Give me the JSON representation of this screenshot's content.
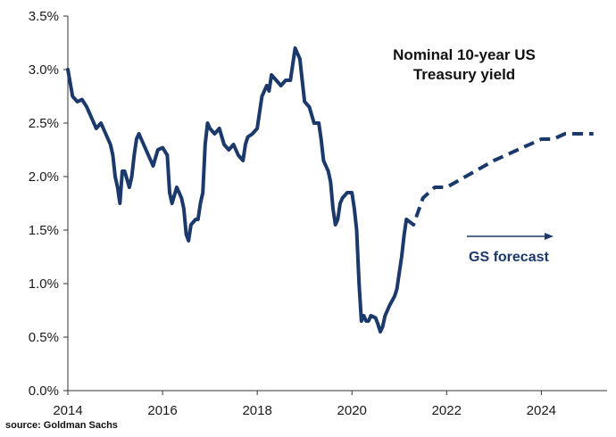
{
  "chart_data": {
    "type": "line",
    "title": "Nominal 10-year US Treasury yield",
    "title_lines": [
      "Nominal 10-year US",
      "Treasury yield"
    ],
    "xlabel": "",
    "ylabel": "",
    "xlim": [
      2014,
      2025.2
    ],
    "ylim": [
      0,
      3.5
    ],
    "x_ticks": [
      2014,
      2016,
      2018,
      2020,
      2022,
      2024
    ],
    "x_tick_labels": [
      "2014",
      "2016",
      "2018",
      "2020",
      "2022",
      "2024"
    ],
    "y_ticks": [
      0,
      0.5,
      1.0,
      1.5,
      2.0,
      2.5,
      3.0,
      3.5
    ],
    "y_tick_labels": [
      "0.0%",
      "0.5%",
      "1.0%",
      "1.5%",
      "2.0%",
      "2.5%",
      "3.0%",
      "3.5%"
    ],
    "grid": false,
    "series": [
      {
        "style": "solid",
        "color": "#1b3a6b",
        "points": [
          [
            2014.0,
            3.0
          ],
          [
            2014.1,
            2.75
          ],
          [
            2014.2,
            2.7
          ],
          [
            2014.3,
            2.72
          ],
          [
            2014.4,
            2.65
          ],
          [
            2014.5,
            2.55
          ],
          [
            2014.6,
            2.45
          ],
          [
            2014.7,
            2.5
          ],
          [
            2014.8,
            2.4
          ],
          [
            2014.9,
            2.3
          ],
          [
            2014.95,
            2.2
          ],
          [
            2015.0,
            2.0
          ],
          [
            2015.05,
            1.9
          ],
          [
            2015.1,
            1.75
          ],
          [
            2015.15,
            2.05
          ],
          [
            2015.2,
            2.05
          ],
          [
            2015.3,
            1.9
          ],
          [
            2015.35,
            2.0
          ],
          [
            2015.4,
            2.2
          ],
          [
            2015.45,
            2.35
          ],
          [
            2015.5,
            2.4
          ],
          [
            2015.6,
            2.3
          ],
          [
            2015.7,
            2.2
          ],
          [
            2015.8,
            2.1
          ],
          [
            2015.9,
            2.25
          ],
          [
            2016.0,
            2.27
          ],
          [
            2016.1,
            2.2
          ],
          [
            2016.15,
            1.85
          ],
          [
            2016.2,
            1.75
          ],
          [
            2016.3,
            1.9
          ],
          [
            2016.4,
            1.8
          ],
          [
            2016.45,
            1.7
          ],
          [
            2016.5,
            1.46
          ],
          [
            2016.55,
            1.4
          ],
          [
            2016.6,
            1.55
          ],
          [
            2016.7,
            1.6
          ],
          [
            2016.75,
            1.6
          ],
          [
            2016.8,
            1.75
          ],
          [
            2016.85,
            1.85
          ],
          [
            2016.9,
            2.3
          ],
          [
            2016.95,
            2.5
          ],
          [
            2017.0,
            2.45
          ],
          [
            2017.1,
            2.4
          ],
          [
            2017.2,
            2.45
          ],
          [
            2017.3,
            2.3
          ],
          [
            2017.4,
            2.25
          ],
          [
            2017.5,
            2.3
          ],
          [
            2017.6,
            2.2
          ],
          [
            2017.7,
            2.15
          ],
          [
            2017.75,
            2.3
          ],
          [
            2017.8,
            2.37
          ],
          [
            2017.9,
            2.4
          ],
          [
            2018.0,
            2.45
          ],
          [
            2018.1,
            2.75
          ],
          [
            2018.2,
            2.85
          ],
          [
            2018.25,
            2.8
          ],
          [
            2018.3,
            2.95
          ],
          [
            2018.4,
            2.9
          ],
          [
            2018.5,
            2.85
          ],
          [
            2018.6,
            2.9
          ],
          [
            2018.7,
            2.9
          ],
          [
            2018.8,
            3.2
          ],
          [
            2018.85,
            3.15
          ],
          [
            2018.9,
            3.1
          ],
          [
            2018.95,
            2.9
          ],
          [
            2019.0,
            2.7
          ],
          [
            2019.1,
            2.65
          ],
          [
            2019.2,
            2.5
          ],
          [
            2019.3,
            2.5
          ],
          [
            2019.35,
            2.35
          ],
          [
            2019.4,
            2.15
          ],
          [
            2019.5,
            2.05
          ],
          [
            2019.55,
            1.95
          ],
          [
            2019.6,
            1.7
          ],
          [
            2019.65,
            1.55
          ],
          [
            2019.7,
            1.6
          ],
          [
            2019.75,
            1.75
          ],
          [
            2019.8,
            1.8
          ],
          [
            2019.9,
            1.85
          ],
          [
            2020.0,
            1.85
          ],
          [
            2020.05,
            1.7
          ],
          [
            2020.1,
            1.5
          ],
          [
            2020.15,
            1.0
          ],
          [
            2020.2,
            0.65
          ],
          [
            2020.25,
            0.7
          ],
          [
            2020.3,
            0.65
          ],
          [
            2020.35,
            0.65
          ],
          [
            2020.4,
            0.7
          ],
          [
            2020.5,
            0.68
          ],
          [
            2020.55,
            0.62
          ],
          [
            2020.6,
            0.55
          ],
          [
            2020.65,
            0.6
          ],
          [
            2020.7,
            0.7
          ],
          [
            2020.8,
            0.8
          ],
          [
            2020.9,
            0.88
          ],
          [
            2020.95,
            0.95
          ],
          [
            2021.0,
            1.1
          ],
          [
            2021.05,
            1.25
          ],
          [
            2021.1,
            1.45
          ],
          [
            2021.15,
            1.6
          ]
        ]
      },
      {
        "style": "dashed",
        "color": "#1b3a6b",
        "points": [
          [
            2021.15,
            1.6
          ],
          [
            2021.3,
            1.55
          ],
          [
            2021.5,
            1.8
          ],
          [
            2021.75,
            1.9
          ],
          [
            2022.0,
            1.9
          ],
          [
            2023.0,
            2.15
          ],
          [
            2024.0,
            2.35
          ],
          [
            2024.25,
            2.35
          ],
          [
            2024.5,
            2.4
          ],
          [
            2025.1,
            2.4
          ]
        ]
      }
    ],
    "annotations": [
      {
        "text": "GS forecast"
      }
    ]
  },
  "source": "source: Goldman Sachs"
}
